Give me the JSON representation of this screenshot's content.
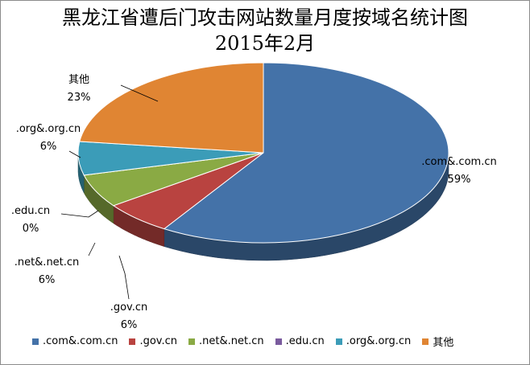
{
  "chart_data": {
    "type": "pie",
    "title_line1": "黑龙江省遭后门攻击网站数量月度按域名统计图",
    "title_line2": "2015年2月",
    "slices": [
      {
        "name": ".com&.com.cn",
        "value": 59,
        "label": "59%",
        "color": "#4472a8"
      },
      {
        "name": ".gov.cn",
        "value": 6,
        "label": "6%",
        "color": "#b94340"
      },
      {
        "name": ".net&.net.cn",
        "value": 6,
        "label": "6%",
        "color": "#8aaa44"
      },
      {
        "name": ".edu.cn",
        "value": 0,
        "label": "0%",
        "color": "#7a5b9e"
      },
      {
        "name": ".org&.org.cn",
        "value": 6,
        "label": "6%",
        "color": "#3b9cb8"
      },
      {
        "name": "其他",
        "value": 23,
        "label": "23%",
        "color": "#e08533"
      }
    ],
    "legend_position": "bottom",
    "style": "3d-exploded"
  }
}
